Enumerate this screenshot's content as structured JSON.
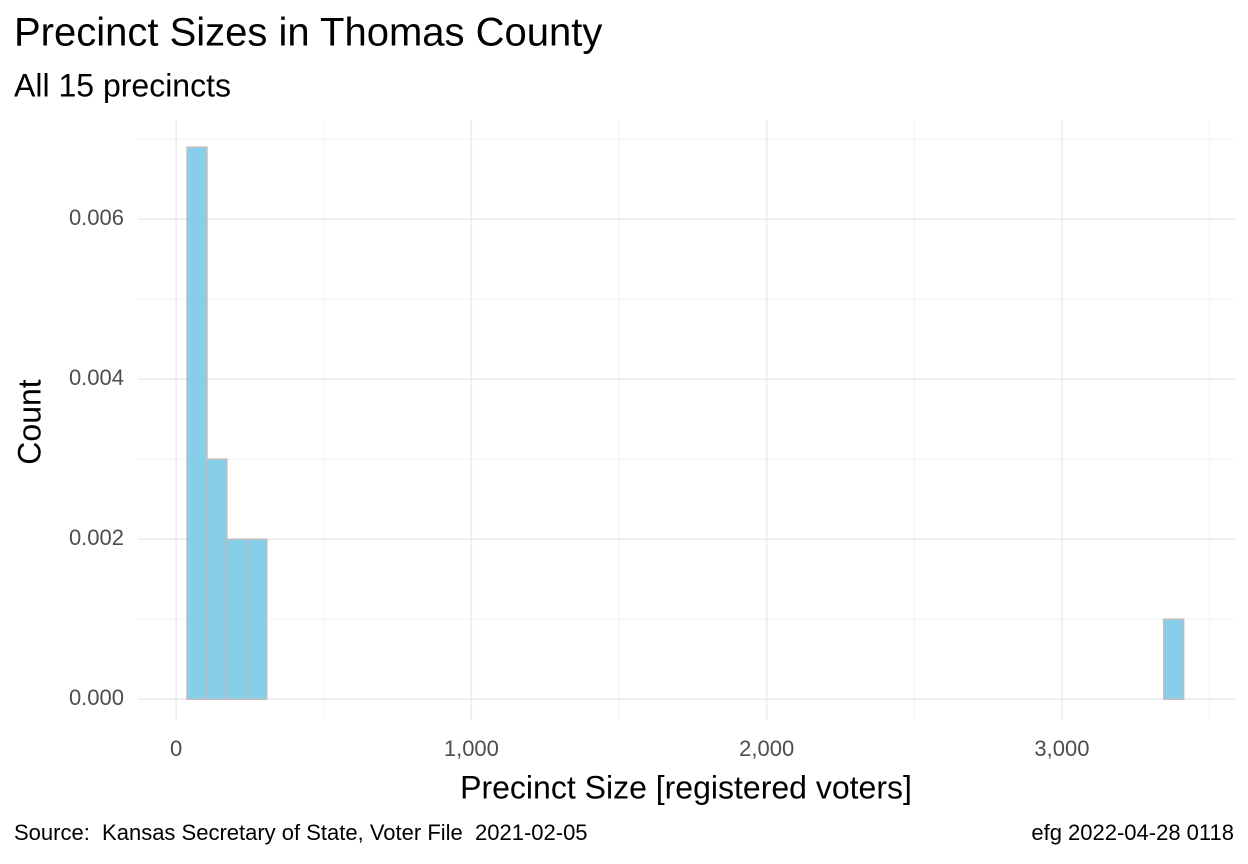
{
  "chart_data": {
    "type": "histogram",
    "title": "Precinct Sizes in Thomas County",
    "subtitle": "All 15 precincts",
    "x_label": "Precinct Size [registered voters]",
    "y_label": "Count",
    "caption_left": "Source:  Kansas Secretary of State, Voter File  2021-02-05",
    "caption_right": "efg 2022-04-28 0118",
    "bins": [
      37,
      104.5,
      172,
      239.5,
      307,
      374.5,
      442,
      509.5,
      577,
      644.5,
      712,
      779.5,
      847,
      914.5,
      982,
      1049.5,
      1117,
      1184.5,
      1252,
      1319.5,
      1387,
      1454.5,
      1522,
      1589.5,
      1657,
      1724.5,
      1792,
      1859.5,
      1927,
      1994.5,
      2062,
      2129.5,
      2197,
      2264.5,
      2332,
      2399.5,
      2467,
      2534.5,
      2602,
      2669.5,
      2737,
      2804.5,
      2872,
      2939.5,
      3007,
      3074.5,
      3142,
      3209.5,
      3277,
      3344.5,
      3412
    ],
    "values": [
      0.0069,
      0.003,
      0.002,
      0.002,
      0,
      0,
      0,
      0,
      0,
      0,
      0,
      0,
      0,
      0,
      0,
      0,
      0,
      0,
      0,
      0,
      0,
      0,
      0,
      0,
      0,
      0,
      0,
      0,
      0,
      0,
      0,
      0,
      0,
      0,
      0,
      0,
      0,
      0,
      0,
      0,
      0,
      0,
      0,
      0,
      0,
      0,
      0,
      0,
      0,
      0.001
    ],
    "color": "#87ceeb",
    "edge_color": "#bebebe",
    "xlim": [
      -129,
      3586
    ],
    "ylim": [
      -0.00026,
      0.00724
    ],
    "xticks": [
      0,
      {
        "value": 1000,
        "label": "1,000"
      },
      {
        "value": 2000,
        "label": "2,000"
      },
      {
        "value": 3000,
        "label": "3,000"
      }
    ],
    "yticks": [
      {
        "value": 0,
        "label": "0.000"
      },
      {
        "value": 0.002,
        "label": "0.002"
      },
      {
        "value": 0.004,
        "label": "0.004"
      },
      {
        "value": 0.006,
        "label": "0.006"
      }
    ],
    "x_minor_ticks": [
      500,
      1500,
      2500,
      3500
    ],
    "y_minor_ticks": [
      0.001,
      0.003,
      0.005,
      0.007
    ],
    "grid": true
  }
}
